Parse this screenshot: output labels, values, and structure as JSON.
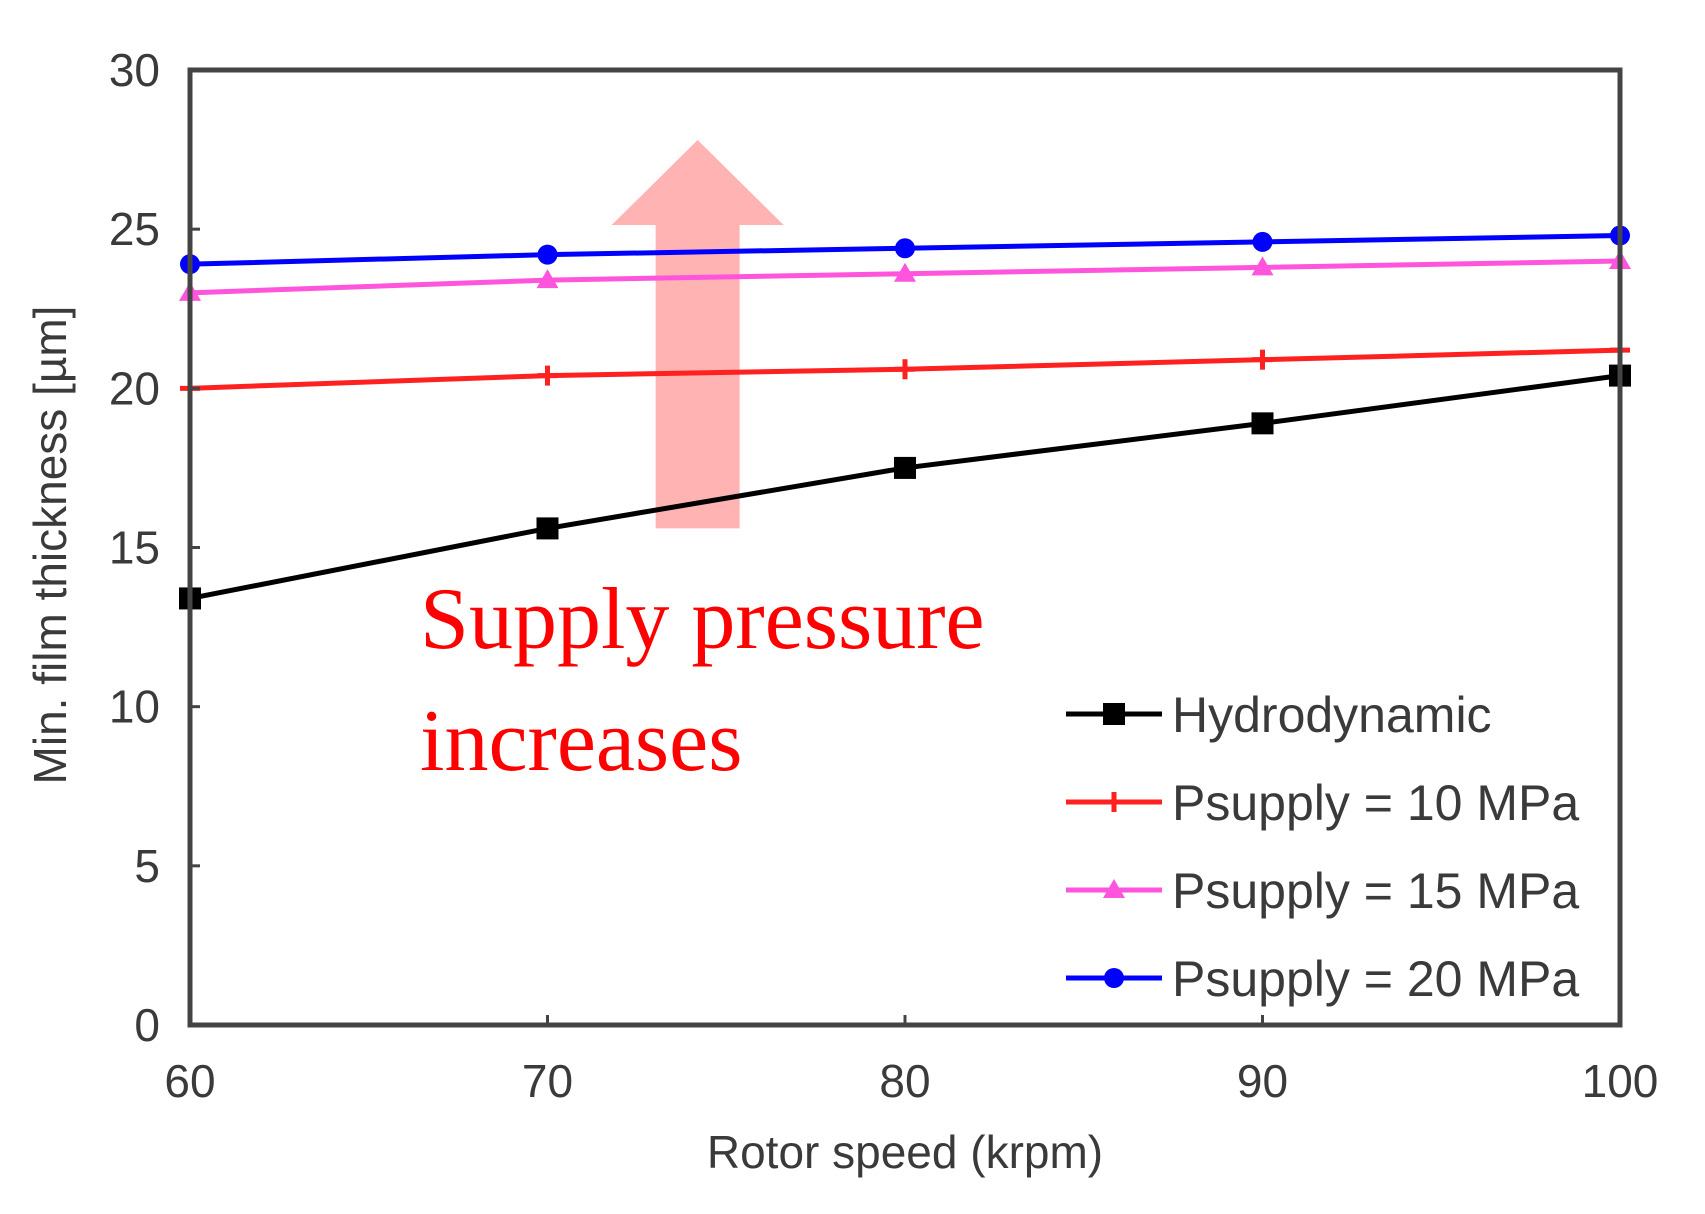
{
  "chart_data": {
    "type": "line",
    "title": "",
    "xlabel": "Rotor speed (krpm)",
    "ylabel": "Min. film thickness [µm]",
    "xlim": [
      60,
      100
    ],
    "ylim": [
      0,
      30
    ],
    "x": [
      60,
      70,
      80,
      90,
      100
    ],
    "xticks": [
      "60",
      "70",
      "80",
      "90",
      "100"
    ],
    "yticks": [
      "0",
      "5",
      "10",
      "15",
      "20",
      "25",
      "30"
    ],
    "grid": false,
    "legend_position": "bottom-right",
    "series": [
      {
        "name": "Hydrodynamic",
        "color": "#000000",
        "marker": "square",
        "values": [
          13.4,
          15.6,
          17.5,
          18.9,
          20.4
        ]
      },
      {
        "name": "Psupply = 10 MPa",
        "color": "#ff2020",
        "marker": "plus",
        "values": [
          20.0,
          20.4,
          20.6,
          20.9,
          21.2
        ]
      },
      {
        "name": "Psupply = 15 MPa",
        "color": "#ff55dd",
        "marker": "triangle",
        "values": [
          23.0,
          23.4,
          23.6,
          23.8,
          24.0
        ]
      },
      {
        "name": "Psupply = 20 MPa",
        "color": "#0000ff",
        "marker": "circle",
        "values": [
          23.9,
          24.2,
          24.4,
          24.6,
          24.8
        ]
      }
    ],
    "annotation": {
      "line1": "Supply pressure",
      "line2": "increases",
      "text_color": "#ff0000",
      "arrow_color": "#ffb3b3",
      "arrow_x": 74.2,
      "arrow_y_from": 15.6,
      "arrow_y_to": 27.8,
      "anchor_x": 66.5,
      "anchor_y": 12.4
    }
  }
}
